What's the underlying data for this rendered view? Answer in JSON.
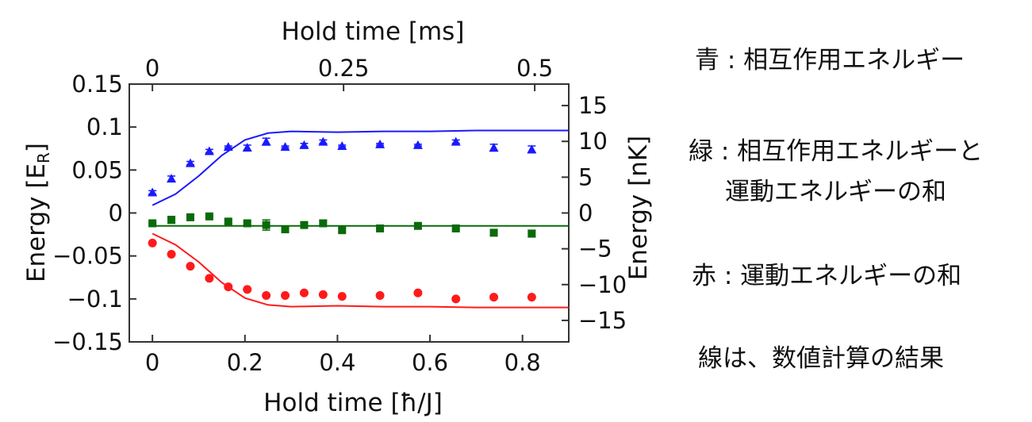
{
  "chart_data": {
    "type": "scatter",
    "xlabel": "Hold time [ħ/J]",
    "ylabel": "Energy [E",
    "ylabel_sub": "R",
    "ylabel_end": "]",
    "top_xlabel": "Hold time [ms]",
    "right_ylabel": "Energy [nK]",
    "xlim": [
      -0.05,
      0.9
    ],
    "ylim": [
      -0.15,
      0.15
    ],
    "xticks": [
      0,
      0.2,
      0.4,
      0.6,
      0.8
    ],
    "xtick_labels": [
      "0",
      "0.2",
      "0.4",
      "0.6",
      "0.8"
    ],
    "yticks": [
      0.15,
      0.1,
      0.05,
      0,
      -0.05,
      -0.1,
      -0.15
    ],
    "ytick_labels": [
      "0.15",
      "0.1",
      "0.05",
      "0",
      "−0.05",
      "−0.1",
      "−0.15"
    ],
    "top_xticks_ms": [
      0,
      0.25,
      0.5
    ],
    "top_xtick_labels": [
      "0",
      "0.25",
      "0.5"
    ],
    "ms_per_unit": 0.605,
    "right_yticks_nK": [
      15,
      10,
      5,
      0,
      -5,
      -10,
      -15
    ],
    "right_ytick_labels": [
      "15",
      "10",
      "5",
      "0",
      "−5",
      "−10",
      "−15"
    ],
    "nK_per_ER": 120,
    "x": [
      0,
      0.041,
      0.082,
      0.123,
      0.164,
      0.205,
      0.246,
      0.287,
      0.328,
      0.369,
      0.41,
      0.492,
      0.574,
      0.656,
      0.738,
      0.82
    ],
    "series": [
      {
        "name": "interaction",
        "color": "#1a1aff",
        "marker": "triangle",
        "values": [
          0.024,
          0.04,
          0.058,
          0.072,
          0.077,
          0.076,
          0.083,
          0.077,
          0.079,
          0.083,
          0.078,
          0.08,
          0.079,
          0.083,
          0.076,
          0.074
        ],
        "errors": [
          0.002,
          0.003,
          0.002,
          0.002,
          0.001,
          0.003,
          0.004,
          0.001,
          0.002,
          0.002,
          0.001,
          0.001,
          0.001,
          0.002,
          0.004,
          0.004
        ]
      },
      {
        "name": "total",
        "color": "#0a6a0a",
        "marker": "square",
        "values": [
          -0.012,
          -0.008,
          -0.005,
          -0.004,
          -0.01,
          -0.012,
          -0.014,
          -0.019,
          -0.014,
          -0.012,
          -0.02,
          -0.018,
          -0.015,
          -0.018,
          -0.023,
          -0.024
        ],
        "errors": [
          0.001,
          0.004,
          0.002,
          0.001,
          0.002,
          0.002,
          0.006,
          0.002,
          0.002,
          0.003,
          0.002,
          0.002,
          0.002,
          0.002,
          0.003,
          0.004
        ]
      },
      {
        "name": "kinetic",
        "color": "#ff1a1a",
        "marker": "circle",
        "values": [
          -0.035,
          -0.048,
          -0.062,
          -0.076,
          -0.086,
          -0.089,
          -0.096,
          -0.096,
          -0.093,
          -0.095,
          -0.097,
          -0.096,
          -0.093,
          -0.1,
          -0.098,
          -0.098
        ],
        "errors": [
          0.001,
          0.001,
          0.001,
          0.001,
          0.001,
          0.001,
          0.001,
          0.001,
          0.001,
          0.001,
          0.001,
          0.001,
          0.001,
          0.001,
          0.002,
          0.001
        ]
      }
    ],
    "lines": [
      {
        "name": "interaction-theory",
        "color": "#1a1aff",
        "x": [
          0,
          0.05,
          0.1,
          0.15,
          0.2,
          0.25,
          0.3,
          0.4,
          0.5,
          0.6,
          0.7,
          0.8,
          0.9
        ],
        "y": [
          0.009,
          0.022,
          0.043,
          0.067,
          0.085,
          0.093,
          0.095,
          0.094,
          0.095,
          0.095,
          0.096,
          0.096,
          0.096
        ]
      },
      {
        "name": "total-theory",
        "color": "#0a6a0a",
        "x": [
          0,
          0.9
        ],
        "y": [
          -0.015,
          -0.015
        ]
      },
      {
        "name": "kinetic-theory",
        "color": "#ff1a1a",
        "x": [
          0,
          0.05,
          0.1,
          0.15,
          0.2,
          0.25,
          0.3,
          0.4,
          0.5,
          0.6,
          0.7,
          0.8,
          0.9
        ],
        "y": [
          -0.024,
          -0.037,
          -0.057,
          -0.081,
          -0.099,
          -0.107,
          -0.109,
          -0.108,
          -0.109,
          -0.109,
          -0.11,
          -0.11,
          -0.11
        ]
      }
    ]
  },
  "legend": {
    "blue": "青 : 相互作用エネルギー",
    "green_1": "緑 : 相互作用エネルギーと",
    "green_2": "運動エネルギーの和",
    "red": "赤 : 運動エネルギーの和",
    "note": "線は、数値計算の結果"
  }
}
